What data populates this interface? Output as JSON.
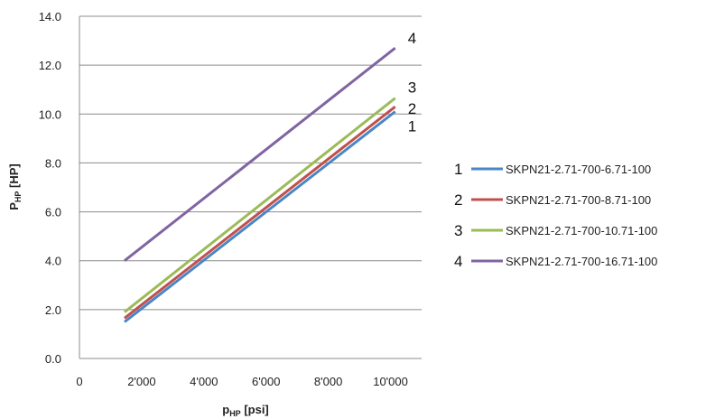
{
  "chart_data": {
    "type": "line",
    "xlabel_main": "p",
    "xlabel_sub": "HP",
    "xlabel_unit": " [psi]",
    "ylabel_main": "P",
    "ylabel_sub": "HP",
    "ylabel_unit": " [HP]",
    "xlim": [
      0,
      11000
    ],
    "ylim": [
      0,
      14
    ],
    "x_ticks": [
      0,
      2000,
      4000,
      6000,
      8000,
      10000
    ],
    "x_tick_labels": [
      "0",
      "2'000",
      "4'000",
      "6'000",
      "8'000",
      "10'000"
    ],
    "y_ticks": [
      0,
      2,
      4,
      6,
      8,
      10,
      12,
      14
    ],
    "y_tick_labels": [
      "0.0",
      "2.0",
      "4.0",
      "6.0",
      "8.0",
      "10.0",
      "12.0",
      "14.0"
    ],
    "grid": "horizontal",
    "legend_position": "right",
    "series": [
      {
        "id": "1",
        "name": "SKPN21-2.71-700-6.71-100",
        "color": "#4a86c5",
        "x": [
          1450,
          10150
        ],
        "y": [
          1.5,
          10.1
        ]
      },
      {
        "id": "2",
        "name": "SKPN21-2.71-700-8.71-100",
        "color": "#c0504d",
        "x": [
          1450,
          10150
        ],
        "y": [
          1.65,
          10.3
        ]
      },
      {
        "id": "3",
        "name": "SKPN21-2.71-700-10.71-100",
        "color": "#9bbb59",
        "x": [
          1450,
          10150
        ],
        "y": [
          1.9,
          10.65
        ]
      },
      {
        "id": "4",
        "name": "SKPN21-2.71-700-16.71-100",
        "color": "#8064a2",
        "x": [
          1450,
          10150
        ],
        "y": [
          4.0,
          12.7
        ]
      }
    ]
  }
}
